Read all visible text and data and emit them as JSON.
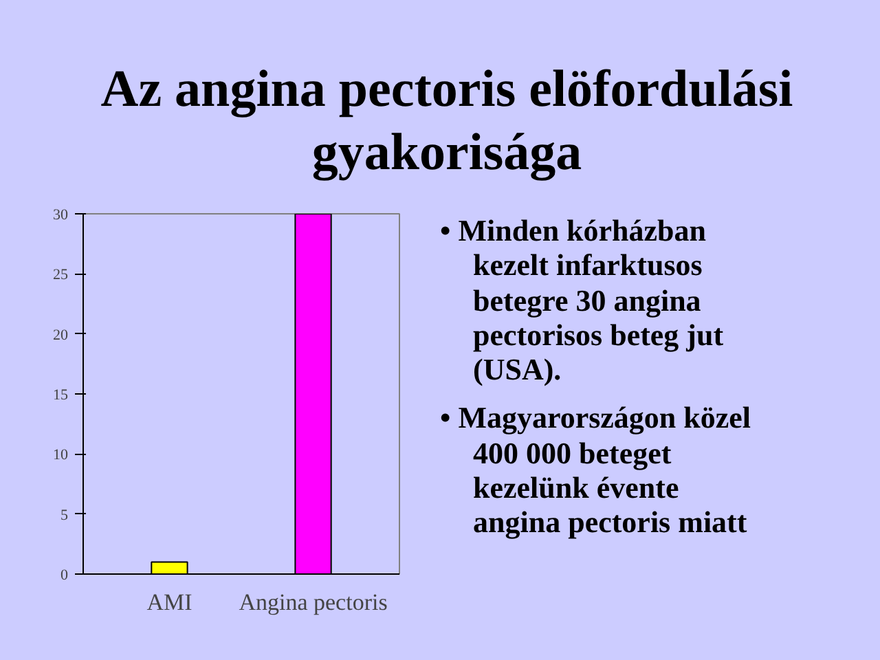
{
  "chart_data": {
    "type": "bar",
    "title": "Az angina pectoris elöfordulási gyakorisága",
    "categories": [
      "AMI",
      "Angina pectoris"
    ],
    "values": [
      1,
      30
    ],
    "colors": [
      "#ffff00",
      "#ff00ff"
    ],
    "ylim": [
      0,
      30
    ],
    "yticks": [
      0,
      5,
      10,
      15,
      20,
      25,
      30
    ],
    "grid": false,
    "annotations": [
      "• Minden kórházban kezelt infarktusos betegre 30 angina pectorisos beteg jut (USA).",
      "• Magyarországon közel 400 000 beteget kezelünk évente angina pectoris miatt"
    ]
  }
}
